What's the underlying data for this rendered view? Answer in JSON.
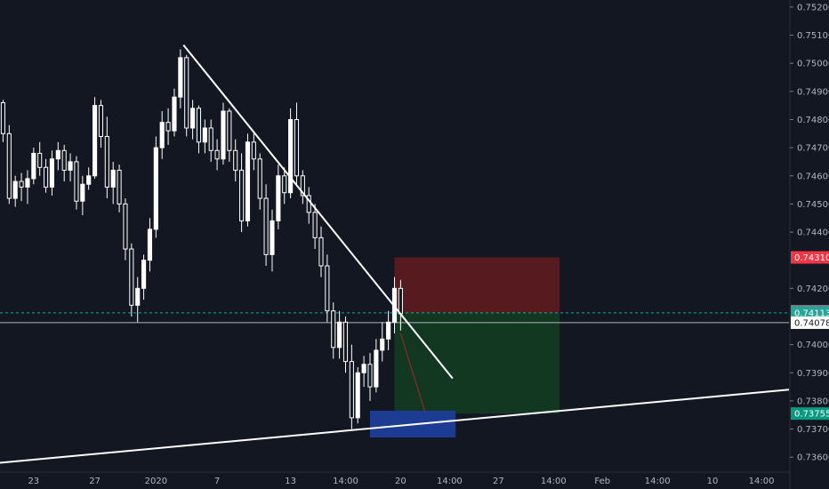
{
  "chart_data": {
    "type": "candlestick",
    "title": "",
    "xlabel": "",
    "ylabel": "",
    "y_axis": {
      "ticks": [
        "0.75200",
        "0.75100",
        "0.75000",
        "0.74900",
        "0.74800",
        "0.74700",
        "0.74600",
        "0.74500",
        "0.74400",
        "0.74200",
        "0.74000",
        "0.73900",
        "0.73800",
        "0.73700",
        "0.73600"
      ],
      "range": [
        0.7355,
        0.75225
      ]
    },
    "x_axis": {
      "ticks": [
        {
          "label": "23",
          "idx": 5
        },
        {
          "label": "27",
          "idx": 15
        },
        {
          "label": "2020",
          "idx": 25
        },
        {
          "label": "7",
          "idx": 35
        },
        {
          "label": "13",
          "idx": 47
        },
        {
          "label": "14:00",
          "idx": 56
        },
        {
          "label": "20",
          "idx": 65
        },
        {
          "label": "14:00",
          "idx": 73
        },
        {
          "label": "27",
          "idx": 81
        },
        {
          "label": "14:00",
          "idx": 90
        },
        {
          "label": "Feb",
          "idx": 98
        },
        {
          "label": "14:00",
          "idx": 107
        },
        {
          "label": "10",
          "idx": 116
        },
        {
          "label": "14:00",
          "idx": 124
        }
      ],
      "range": [
        -0.5,
        128.5
      ]
    },
    "price_tags": [
      {
        "label": "0.74310",
        "value": 0.7431,
        "color": "#f23645",
        "text_color": "#ffffff"
      },
      {
        "label": "0.74119",
        "value": 0.74119,
        "color": "#787b86",
        "text_color": "#ffffff"
      },
      {
        "label": "0.74113",
        "value": 0.74113,
        "color": "#26a69a",
        "text_color": "#ffffff"
      },
      {
        "label": "0.74078",
        "value": 0.74078,
        "color": "#ffffff",
        "text_color": "#131722"
      },
      {
        "label": "0.73755",
        "value": 0.73755,
        "color": "#089981",
        "text_color": "#ffffff"
      }
    ],
    "horizontal_lines": [
      {
        "value": 0.74113,
        "color": "#26a69a",
        "style": "dashed"
      },
      {
        "value": 0.74078,
        "color": "#b2b5be",
        "style": "solid"
      }
    ],
    "trend_lines": [
      {
        "from": {
          "idx": 29.5,
          "value": 0.75065
        },
        "to": {
          "idx": 73.5,
          "value": 0.7388
        },
        "color": "#ffffff"
      },
      {
        "from": {
          "idx": -0.5,
          "value": 0.7358
        },
        "to": {
          "idx": 128.5,
          "value": 0.7384
        },
        "color": "#ffffff"
      }
    ],
    "position_boxes": [
      {
        "kind": "stop",
        "x1_idx": 64,
        "x2_idx": 91,
        "top": 0.7431,
        "bottom": 0.74113,
        "color": "#5a1a20"
      },
      {
        "kind": "target",
        "x1_idx": 64,
        "x2_idx": 91,
        "top": 0.74113,
        "bottom": 0.73755,
        "color": "#133a22"
      }
    ],
    "highlight_box": {
      "x1_idx": 60,
      "x2_idx": 74,
      "top": 0.73765,
      "bottom": 0.7367,
      "color": "#1e3f9e"
    },
    "projection_arrow": {
      "from": {
        "idx": 65,
        "value": 0.7404
      },
      "to": {
        "idx": 69,
        "value": 0.7376
      },
      "color": "#8a2a2a"
    },
    "candles": [
      [
        0.7486,
        0.7487,
        0.7472,
        0.7475
      ],
      [
        0.7475,
        0.7478,
        0.745,
        0.7452
      ],
      [
        0.7452,
        0.746,
        0.7449,
        0.7458
      ],
      [
        0.7458,
        0.7461,
        0.7451,
        0.7456
      ],
      [
        0.7456,
        0.7462,
        0.745,
        0.7459
      ],
      [
        0.7459,
        0.747,
        0.7457,
        0.7468
      ],
      [
        0.7468,
        0.7472,
        0.746,
        0.7463
      ],
      [
        0.7463,
        0.7466,
        0.7454,
        0.7456
      ],
      [
        0.7456,
        0.7469,
        0.7453,
        0.7466
      ],
      [
        0.7466,
        0.7472,
        0.7462,
        0.7469
      ],
      [
        0.7469,
        0.7471,
        0.7458,
        0.7462
      ],
      [
        0.7462,
        0.7468,
        0.7458,
        0.7465
      ],
      [
        0.7465,
        0.7467,
        0.7448,
        0.7451
      ],
      [
        0.7451,
        0.746,
        0.7446,
        0.7457
      ],
      [
        0.7457,
        0.7463,
        0.7455,
        0.746
      ],
      [
        0.746,
        0.7488,
        0.7459,
        0.7485
      ],
      [
        0.7485,
        0.7487,
        0.747,
        0.7474
      ],
      [
        0.7474,
        0.7481,
        0.7452,
        0.7456
      ],
      [
        0.7456,
        0.7465,
        0.745,
        0.7462
      ],
      [
        0.7462,
        0.7464,
        0.7447,
        0.745
      ],
      [
        0.745,
        0.7452,
        0.743,
        0.7434
      ],
      [
        0.7434,
        0.7436,
        0.741,
        0.7414
      ],
      [
        0.7414,
        0.7424,
        0.7408,
        0.742
      ],
      [
        0.742,
        0.7432,
        0.7416,
        0.743
      ],
      [
        0.743,
        0.7445,
        0.7426,
        0.7441
      ],
      [
        0.7441,
        0.7474,
        0.7438,
        0.747
      ],
      [
        0.747,
        0.7483,
        0.7466,
        0.7479
      ],
      [
        0.7479,
        0.7484,
        0.7471,
        0.7476
      ],
      [
        0.7476,
        0.7491,
        0.7474,
        0.7488
      ],
      [
        0.7488,
        0.7505,
        0.7484,
        0.7502
      ],
      [
        0.7502,
        0.7503,
        0.7474,
        0.7477
      ],
      [
        0.7477,
        0.7487,
        0.7473,
        0.7484
      ],
      [
        0.7484,
        0.7485,
        0.7468,
        0.7472
      ],
      [
        0.7472,
        0.748,
        0.7468,
        0.7477
      ],
      [
        0.7477,
        0.748,
        0.7465,
        0.7469
      ],
      [
        0.7469,
        0.7473,
        0.7462,
        0.7466
      ],
      [
        0.7466,
        0.7486,
        0.7464,
        0.7483
      ],
      [
        0.7483,
        0.7484,
        0.7465,
        0.7469
      ],
      [
        0.7469,
        0.7473,
        0.7458,
        0.7462
      ],
      [
        0.7462,
        0.7468,
        0.744,
        0.7444
      ],
      [
        0.7444,
        0.7475,
        0.7442,
        0.7472
      ],
      [
        0.7472,
        0.7475,
        0.7462,
        0.7466
      ],
      [
        0.7466,
        0.7468,
        0.7448,
        0.7452
      ],
      [
        0.7452,
        0.7457,
        0.7428,
        0.7432
      ],
      [
        0.7432,
        0.7448,
        0.7426,
        0.7444
      ],
      [
        0.7444,
        0.7464,
        0.7441,
        0.746
      ],
      [
        0.746,
        0.7463,
        0.745,
        0.7454
      ],
      [
        0.7454,
        0.7484,
        0.7452,
        0.748
      ],
      [
        0.748,
        0.7486,
        0.7457,
        0.746
      ],
      [
        0.746,
        0.7462,
        0.745,
        0.7453
      ],
      [
        0.7453,
        0.7456,
        0.7443,
        0.7447
      ],
      [
        0.7447,
        0.745,
        0.7434,
        0.7438
      ],
      [
        0.7438,
        0.7442,
        0.7424,
        0.7428
      ],
      [
        0.7428,
        0.7432,
        0.7408,
        0.7412
      ],
      [
        0.7412,
        0.7415,
        0.7395,
        0.7399
      ],
      [
        0.7399,
        0.7412,
        0.7395,
        0.7408
      ],
      [
        0.7408,
        0.741,
        0.739,
        0.7394
      ],
      [
        0.7394,
        0.74,
        0.737,
        0.7374
      ],
      [
        0.7374,
        0.7392,
        0.7372,
        0.739
      ],
      [
        0.739,
        0.7396,
        0.7385,
        0.7393
      ],
      [
        0.7393,
        0.7397,
        0.738,
        0.7385
      ],
      [
        0.7385,
        0.7402,
        0.7383,
        0.7398
      ],
      [
        0.7398,
        0.7408,
        0.7394,
        0.7402
      ],
      [
        0.7402,
        0.7412,
        0.7398,
        0.7408
      ],
      [
        0.7408,
        0.7424,
        0.7404,
        0.742
      ],
      [
        0.742,
        0.7423,
        0.7405,
        0.7411
      ]
    ]
  }
}
